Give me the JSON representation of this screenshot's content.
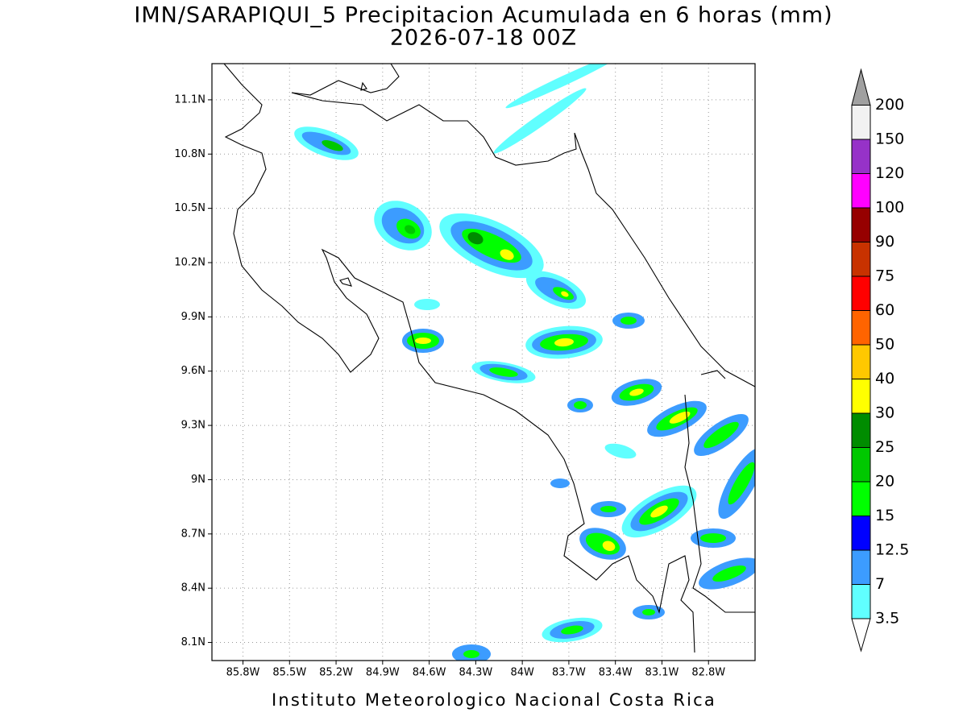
{
  "title": "IMN/SARAPIQUI_5 Precipitacion Acumulada en 6 horas (mm)",
  "subtitle": "2026-07-18 00Z",
  "credit": "Instituto Meteorologico Nacional Costa Rica",
  "map": {
    "xlim": [
      -86.0,
      -82.5
    ],
    "ylim": [
      8.0,
      11.3
    ],
    "grid": true,
    "xticks": [
      {
        "value": -85.8,
        "label": "85.8W"
      },
      {
        "value": -85.5,
        "label": "85.5W"
      },
      {
        "value": -85.2,
        "label": "85.2W"
      },
      {
        "value": -84.9,
        "label": "84.9W"
      },
      {
        "value": -84.6,
        "label": "84.6W"
      },
      {
        "value": -84.3,
        "label": "84.3W"
      },
      {
        "value": -84.0,
        "label": "84W"
      },
      {
        "value": -83.7,
        "label": "83.7W"
      },
      {
        "value": -83.4,
        "label": "83.4W"
      },
      {
        "value": -83.1,
        "label": "83.1W"
      },
      {
        "value": -82.8,
        "label": "82.8W"
      }
    ],
    "yticks": [
      {
        "value": 8.1,
        "label": "8.1N"
      },
      {
        "value": 8.4,
        "label": "8.4N"
      },
      {
        "value": 8.7,
        "label": "8.7N"
      },
      {
        "value": 9.0,
        "label": "9N"
      },
      {
        "value": 9.3,
        "label": "9.3N"
      },
      {
        "value": 9.6,
        "label": "9.6N"
      },
      {
        "value": 9.9,
        "label": "9.9N"
      },
      {
        "value": 10.2,
        "label": "10.2N"
      },
      {
        "value": 10.5,
        "label": "10.5N"
      },
      {
        "value": 10.8,
        "label": "10.8N"
      },
      {
        "value": 11.1,
        "label": "11.1N"
      }
    ]
  },
  "colorbar": {
    "levels": [
      3.5,
      7,
      12.5,
      15,
      20,
      25,
      30,
      40,
      50,
      60,
      75,
      90,
      100,
      120,
      150,
      200
    ],
    "colors": [
      "#ffffff",
      "#60ffff",
      "#3c9cff",
      "#0000ff",
      "#00ff00",
      "#00c800",
      "#008c00",
      "#ffff00",
      "#ffc800",
      "#ff6400",
      "#ff0000",
      "#c83200",
      "#960000",
      "#ff00ff",
      "#9632c8",
      "#f2f2f2",
      "#a0a0a0"
    ]
  }
}
